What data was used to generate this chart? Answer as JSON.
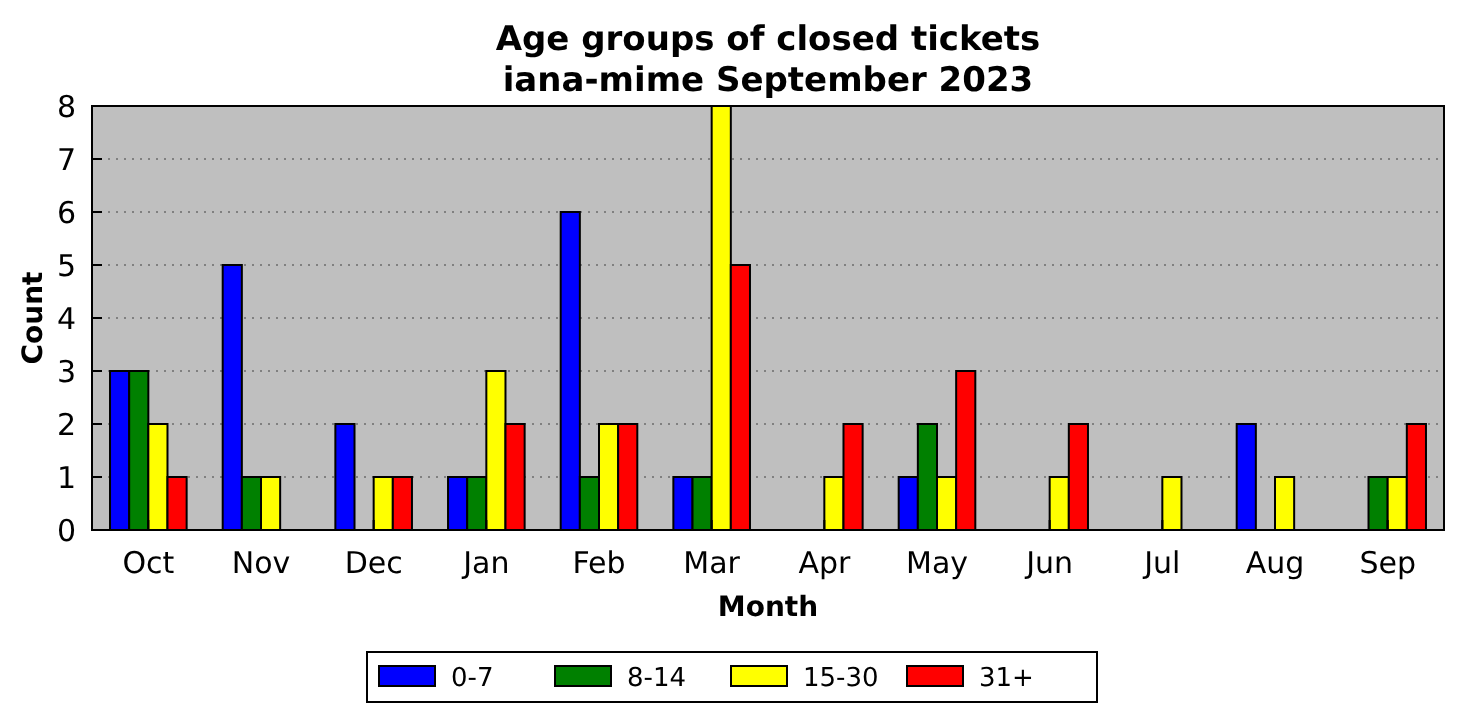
{
  "chart_data": {
    "type": "bar",
    "title": "Age groups of closed tickets\niana-mime September 2023",
    "xlabel": "Month",
    "ylabel": "Count",
    "categories": [
      "Oct",
      "Nov",
      "Dec",
      "Jan",
      "Feb",
      "Mar",
      "Apr",
      "May",
      "Jun",
      "Jul",
      "Aug",
      "Sep"
    ],
    "series": [
      {
        "name": "0-7",
        "color": "#0000ff",
        "values": [
          3,
          5,
          2,
          1,
          6,
          1,
          0,
          1,
          0,
          0,
          2,
          0
        ]
      },
      {
        "name": "8-14",
        "color": "#008000",
        "values": [
          3,
          1,
          0,
          1,
          1,
          1,
          0,
          2,
          0,
          0,
          0,
          1
        ]
      },
      {
        "name": "15-30",
        "color": "#ffff00",
        "values": [
          2,
          1,
          1,
          3,
          2,
          8,
          1,
          1,
          1,
          1,
          1,
          1
        ]
      },
      {
        "name": "31+",
        "color": "#ff0000",
        "values": [
          1,
          0,
          1,
          2,
          2,
          5,
          2,
          3,
          2,
          0,
          0,
          2
        ]
      }
    ],
    "ylim": [
      0,
      8
    ],
    "yticks": [
      0,
      1,
      2,
      3,
      4,
      5,
      6,
      7,
      8
    ],
    "grid": "y",
    "legend": "bottom"
  }
}
